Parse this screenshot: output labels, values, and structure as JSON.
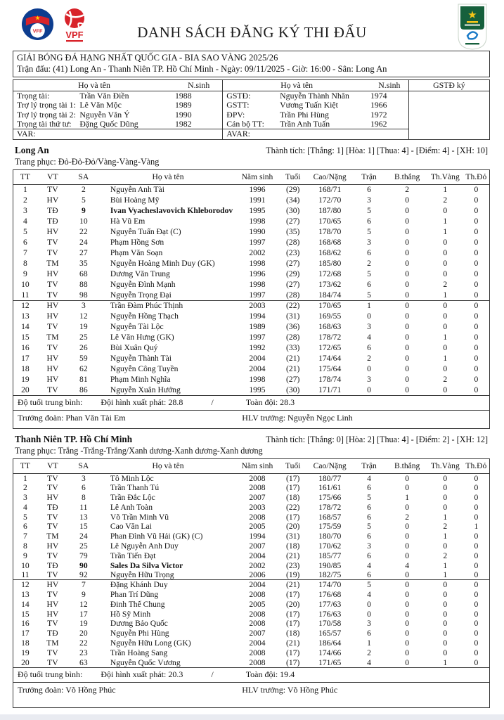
{
  "document": {
    "title": "DANH SÁCH ĐĂNG KÝ THI ĐẤU"
  },
  "logos": {
    "vff_label": "VFF",
    "vpf_label": "VPF"
  },
  "match": {
    "competition": "GIẢI BÓNG ĐÁ HẠNG NHẤT QUỐC GIA - BIA SAO VÀNG 2025/26",
    "details": "Trận đấu: (41) Long An - Thanh Niên TP. Hồ Chí Minh - Ngày: 09/11/2025 - Giờ: 16:00 - Sân: Long An"
  },
  "officials": {
    "name_header": "Họ và tên",
    "birth_header": "N.sinh",
    "sign_header": "GSTĐ ký",
    "rows": [
      {
        "l_label": "Trọng tài:",
        "l_name": "Trần Văn Điền",
        "l_birth": "1988",
        "r_label": "GSTĐ:",
        "r_name": "Nguyễn Thành Nhân",
        "r_birth": "1974"
      },
      {
        "l_label": "Trợ lý trọng tài 1:",
        "l_name": "Lê Văn Mộc",
        "l_birth": "1989",
        "r_label": "GSTT:",
        "r_name": "Vương Tuấn Kiệt",
        "r_birth": "1966"
      },
      {
        "l_label": "Trợ lý trọng tài 2:",
        "l_name": "Nguyễn Văn Ý",
        "l_birth": "1990",
        "r_label": "ĐPV:",
        "r_name": "Trần Phi Hùng",
        "r_birth": "1972"
      },
      {
        "l_label": "Trọng tài thứ tư:",
        "l_name": "Đặng Quốc Dũng",
        "l_birth": "1982",
        "r_label": "Cán bộ TT:",
        "r_name": "Trần Anh Tuấn",
        "r_birth": "1962"
      }
    ],
    "var_label": "VAR:",
    "avar_label": "AVAR:"
  },
  "columns": {
    "tt": "TT",
    "vt": "VT",
    "sa": "SA",
    "name": "Họ và tên",
    "birth": "Năm sinh",
    "age": "Tuổi",
    "hw": "Cao/Nặng",
    "matches": "Trận",
    "goals": "B.thắng",
    "yellow": "Th.Vàng",
    "red": "Th.Đỏ"
  },
  "teams": [
    {
      "name": "Long An",
      "record": "Thành tích: [Thắng: 1] [Hòa: 1] [Thua: 4] - [Điểm: 4] - [XH: 10]",
      "kit": "Trang phục: Đỏ-Đỏ-Đỏ/Vàng-Vàng-Vàng",
      "players": [
        {
          "tt": 1,
          "vt": "TV",
          "sa": 2,
          "name": "Nguyễn Anh Tài",
          "birth": 1996,
          "age": "(29)",
          "hw": "168/71",
          "matches": 6,
          "goals": 2,
          "yellow": 1,
          "red": 0
        },
        {
          "tt": 2,
          "vt": "HV",
          "sa": 5,
          "name": "Bùi Hoàng Mỹ",
          "birth": 1991,
          "age": "(34)",
          "hw": "172/70",
          "matches": 3,
          "goals": 0,
          "yellow": 2,
          "red": 0
        },
        {
          "tt": 3,
          "vt": "TĐ",
          "sa": 9,
          "name": "Ivan Vyacheslavovich Khleborodov",
          "birth": 1995,
          "age": "(30)",
          "hw": "187/80",
          "matches": 5,
          "goals": 0,
          "yellow": 0,
          "red": 0,
          "bold": true
        },
        {
          "tt": 4,
          "vt": "TĐ",
          "sa": 10,
          "name": "Hà Vũ Em",
          "birth": 1998,
          "age": "(27)",
          "hw": "170/65",
          "matches": 6,
          "goals": 0,
          "yellow": 1,
          "red": 0
        },
        {
          "tt": 5,
          "vt": "HV",
          "sa": 22,
          "name": "Nguyễn Tuấn Đạt (C)",
          "birth": 1990,
          "age": "(35)",
          "hw": "178/70",
          "matches": 5,
          "goals": 0,
          "yellow": 1,
          "red": 0
        },
        {
          "tt": 6,
          "vt": "TV",
          "sa": 24,
          "name": "Phạm Hồng Sơn",
          "birth": 1997,
          "age": "(28)",
          "hw": "168/68",
          "matches": 3,
          "goals": 0,
          "yellow": 0,
          "red": 0
        },
        {
          "tt": 7,
          "vt": "TV",
          "sa": 27,
          "name": "Phạm Văn Soạn",
          "birth": 2002,
          "age": "(23)",
          "hw": "168/62",
          "matches": 6,
          "goals": 0,
          "yellow": 0,
          "red": 0
        },
        {
          "tt": 8,
          "vt": "TM",
          "sa": 35,
          "name": "Nguyễn Hoàng Minh Duy (GK)",
          "birth": 1998,
          "age": "(27)",
          "hw": "185/80",
          "matches": 2,
          "goals": 0,
          "yellow": 0,
          "red": 0
        },
        {
          "tt": 9,
          "vt": "HV",
          "sa": 68,
          "name": "Dương Văn Trung",
          "birth": 1996,
          "age": "(29)",
          "hw": "172/68",
          "matches": 5,
          "goals": 0,
          "yellow": 0,
          "red": 0
        },
        {
          "tt": 10,
          "vt": "TV",
          "sa": 88,
          "name": "Nguyễn Đình Mạnh",
          "birth": 1998,
          "age": "(27)",
          "hw": "173/62",
          "matches": 6,
          "goals": 0,
          "yellow": 2,
          "red": 0
        },
        {
          "tt": 11,
          "vt": "TV",
          "sa": 98,
          "name": "Nguyễn Trọng Đại",
          "birth": 1997,
          "age": "(28)",
          "hw": "184/74",
          "matches": 5,
          "goals": 0,
          "yellow": 1,
          "red": 0
        },
        {
          "tt": 12,
          "vt": "HV",
          "sa": 3,
          "name": "Trần Đàm Phúc Thịnh",
          "birth": 2003,
          "age": "(22)",
          "hw": "170/65",
          "matches": 1,
          "goals": 0,
          "yellow": 0,
          "red": 0
        },
        {
          "tt": 13,
          "vt": "HV",
          "sa": 12,
          "name": "Nguyễn Hồng Thạch",
          "birth": 1994,
          "age": "(31)",
          "hw": "169/55",
          "matches": 0,
          "goals": 0,
          "yellow": 0,
          "red": 0
        },
        {
          "tt": 14,
          "vt": "TV",
          "sa": 19,
          "name": "Nguyễn Tài Lộc",
          "birth": 1989,
          "age": "(36)",
          "hw": "168/63",
          "matches": 3,
          "goals": 0,
          "yellow": 0,
          "red": 0
        },
        {
          "tt": 15,
          "vt": "TM",
          "sa": 25,
          "name": "Lê Văn Hưng (GK)",
          "birth": 1997,
          "age": "(28)",
          "hw": "178/72",
          "matches": 4,
          "goals": 0,
          "yellow": 1,
          "red": 0
        },
        {
          "tt": 16,
          "vt": "TV",
          "sa": 26,
          "name": "Bùi Xuân Quý",
          "birth": 1992,
          "age": "(33)",
          "hw": "172/65",
          "matches": 6,
          "goals": 0,
          "yellow": 0,
          "red": 0
        },
        {
          "tt": 17,
          "vt": "HV",
          "sa": 59,
          "name": "Nguyễn Thành Tài",
          "birth": 2004,
          "age": "(21)",
          "hw": "174/64",
          "matches": 2,
          "goals": 0,
          "yellow": 1,
          "red": 0
        },
        {
          "tt": 18,
          "vt": "HV",
          "sa": 62,
          "name": "Nguyễn Công Tuyền",
          "birth": 2004,
          "age": "(21)",
          "hw": "175/64",
          "matches": 0,
          "goals": 0,
          "yellow": 0,
          "red": 0
        },
        {
          "tt": 19,
          "vt": "HV",
          "sa": 81,
          "name": "Phạm Minh Nghĩa",
          "birth": 1998,
          "age": "(27)",
          "hw": "178/74",
          "matches": 3,
          "goals": 0,
          "yellow": 2,
          "red": 0
        },
        {
          "tt": 20,
          "vt": "TV",
          "sa": 86,
          "name": "Nguyễn Xuân Hướng",
          "birth": 1995,
          "age": "(30)",
          "hw": "171/71",
          "matches": 0,
          "goals": 0,
          "yellow": 0,
          "red": 0
        }
      ],
      "avg": {
        "label": "Độ tuổi trung bình:",
        "starting": "Đội hình xuất phát: 28.8",
        "separator": "/",
        "total": "Toàn đội: 28.3"
      },
      "staff": {
        "manager": "Trưởng đoàn: Phan Văn Tài Em",
        "coach": "HLV trưởng: Nguyễn Ngọc Linh"
      }
    },
    {
      "name": "Thanh Niên TP. Hồ Chí Minh",
      "record": "Thành tích: [Thắng: 0] [Hòa: 2] [Thua: 4] - [Điểm: 2] - [XH: 12]",
      "kit": "Trang phục: Trắng -Trắng-Trắng/Xanh dương-Xanh dương-Xanh dương",
      "players": [
        {
          "tt": 1,
          "vt": "TV",
          "sa": 3,
          "name": "Tô Minh Lộc",
          "birth": 2008,
          "age": "(17)",
          "hw": "180/77",
          "matches": 4,
          "goals": 0,
          "yellow": 0,
          "red": 0
        },
        {
          "tt": 2,
          "vt": "TV",
          "sa": 6,
          "name": "Trần Thanh Tú",
          "birth": 2008,
          "age": "(17)",
          "hw": "161/61",
          "matches": 6,
          "goals": 0,
          "yellow": 0,
          "red": 0
        },
        {
          "tt": 3,
          "vt": "HV",
          "sa": 8,
          "name": "Trần Đắc Lộc",
          "birth": 2007,
          "age": "(18)",
          "hw": "175/66",
          "matches": 5,
          "goals": 1,
          "yellow": 0,
          "red": 0
        },
        {
          "tt": 4,
          "vt": "TĐ",
          "sa": 11,
          "name": "Lê Anh Toàn",
          "birth": 2003,
          "age": "(22)",
          "hw": "178/72",
          "matches": 6,
          "goals": 0,
          "yellow": 0,
          "red": 0
        },
        {
          "tt": 5,
          "vt": "TV",
          "sa": 13,
          "name": "Võ Trần Minh Vũ",
          "birth": 2008,
          "age": "(17)",
          "hw": "168/57",
          "matches": 6,
          "goals": 2,
          "yellow": 1,
          "red": 0
        },
        {
          "tt": 6,
          "vt": "TV",
          "sa": 15,
          "name": "Cao Văn Lai",
          "birth": 2005,
          "age": "(20)",
          "hw": "175/59",
          "matches": 5,
          "goals": 0,
          "yellow": 2,
          "red": 1
        },
        {
          "tt": 7,
          "vt": "TM",
          "sa": 24,
          "name": "Phan Đình Vũ Hải (GK) (C)",
          "birth": 1994,
          "age": "(31)",
          "hw": "180/70",
          "matches": 6,
          "goals": 0,
          "yellow": 1,
          "red": 0
        },
        {
          "tt": 8,
          "vt": "HV",
          "sa": 25,
          "name": "Lê Nguyễn Anh Duy",
          "birth": 2007,
          "age": "(18)",
          "hw": "170/62",
          "matches": 3,
          "goals": 0,
          "yellow": 0,
          "red": 0
        },
        {
          "tt": 9,
          "vt": "TV",
          "sa": 79,
          "name": "Trần Tiến Đạt",
          "birth": 2004,
          "age": "(21)",
          "hw": "185/77",
          "matches": 6,
          "goals": 0,
          "yellow": 2,
          "red": 0
        },
        {
          "tt": 10,
          "vt": "TĐ",
          "sa": 90,
          "name": "Sales Da Silva Victor",
          "birth": 2002,
          "age": "(23)",
          "hw": "190/85",
          "matches": 4,
          "goals": 4,
          "yellow": 1,
          "red": 0,
          "bold": true
        },
        {
          "tt": 11,
          "vt": "TV",
          "sa": 92,
          "name": "Nguyễn Hữu Trọng",
          "birth": 2006,
          "age": "(19)",
          "hw": "182/75",
          "matches": 6,
          "goals": 0,
          "yellow": 1,
          "red": 0
        },
        {
          "tt": 12,
          "vt": "HV",
          "sa": 7,
          "name": "Đặng Khánh Duy",
          "birth": 2004,
          "age": "(21)",
          "hw": "174/70",
          "matches": 5,
          "goals": 0,
          "yellow": 0,
          "red": 0
        },
        {
          "tt": 13,
          "vt": "TV",
          "sa": 9,
          "name": "Phan Trí Dũng",
          "birth": 2008,
          "age": "(17)",
          "hw": "176/68",
          "matches": 4,
          "goals": 0,
          "yellow": 0,
          "red": 0
        },
        {
          "tt": 14,
          "vt": "HV",
          "sa": 12,
          "name": "Đinh Thế Chung",
          "birth": 2005,
          "age": "(20)",
          "hw": "177/63",
          "matches": 0,
          "goals": 0,
          "yellow": 0,
          "red": 0
        },
        {
          "tt": 15,
          "vt": "HV",
          "sa": 17,
          "name": "Hồ Sỹ Minh",
          "birth": 2008,
          "age": "(17)",
          "hw": "176/63",
          "matches": 0,
          "goals": 0,
          "yellow": 0,
          "red": 0
        },
        {
          "tt": 16,
          "vt": "TV",
          "sa": 19,
          "name": "Dương Bảo Quốc",
          "birth": 2008,
          "age": "(17)",
          "hw": "170/58",
          "matches": 3,
          "goals": 0,
          "yellow": 0,
          "red": 0
        },
        {
          "tt": 17,
          "vt": "TĐ",
          "sa": 20,
          "name": "Nguyễn Phi Hùng",
          "birth": 2007,
          "age": "(18)",
          "hw": "165/57",
          "matches": 6,
          "goals": 0,
          "yellow": 0,
          "red": 0
        },
        {
          "tt": 18,
          "vt": "TM",
          "sa": 22,
          "name": "Nguyễn Hữu Long (GK)",
          "birth": 2004,
          "age": "(21)",
          "hw": "186/64",
          "matches": 1,
          "goals": 0,
          "yellow": 0,
          "red": 0
        },
        {
          "tt": 19,
          "vt": "TV",
          "sa": 23,
          "name": "Trần Hoàng Sang",
          "birth": 2008,
          "age": "(17)",
          "hw": "174/66",
          "matches": 2,
          "goals": 0,
          "yellow": 0,
          "red": 0
        },
        {
          "tt": 20,
          "vt": "TV",
          "sa": 63,
          "name": "Nguyễn Quốc Vương",
          "birth": 2008,
          "age": "(17)",
          "hw": "171/65",
          "matches": 4,
          "goals": 0,
          "yellow": 1,
          "red": 0
        }
      ],
      "avg": {
        "label": "Độ tuổi trung bình:",
        "starting": "Đội hình xuất phát: 20.3",
        "separator": "/",
        "total": "Toàn đội: 19.4"
      },
      "staff": {
        "manager": "Trưởng đoàn: Võ Hồng Phúc",
        "coach": "HLV trưởng: Võ Hồng Phúc"
      }
    }
  ]
}
